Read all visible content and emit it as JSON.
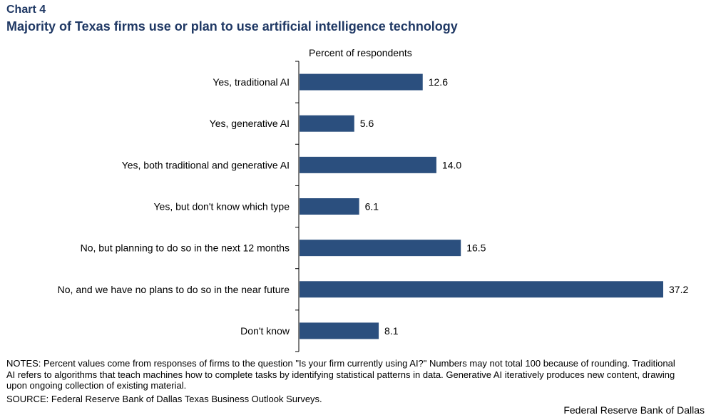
{
  "header": {
    "chart_number": "Chart 4",
    "title": "Majority of Texas firms use or plan to use artificial intelligence technology"
  },
  "colors": {
    "bar": "#2b4f7e",
    "title": "#1f3864"
  },
  "chart_data": {
    "type": "bar",
    "orientation": "horizontal",
    "unit_label": "Percent of respondents",
    "categories": [
      "Yes, traditional AI",
      "Yes, generative AI",
      "Yes, both traditional and generative AI",
      "Yes, but don't know which type",
      "No, but planning to do so in the next 12 months",
      "No, and we have no plans to do so in the near future",
      "Don't know"
    ],
    "values": [
      12.6,
      5.6,
      14.0,
      6.1,
      16.5,
      37.2,
      8.1
    ],
    "value_labels": [
      "12.6",
      "5.6",
      "14.0",
      "6.1",
      "16.5",
      "37.2",
      "8.1"
    ],
    "xlim": [
      0,
      40
    ],
    "grid": false,
    "legend": "none"
  },
  "footer": {
    "notes": "NOTES: Percent values come from responses of firms to the question \"Is your firm currently using AI?\" Numbers may not total 100 because of rounding. Traditional AI refers to algorithms that teach machines how to complete tasks by identifying statistical patterns in data. Generative AI iteratively produces new content, drawing upon ongoing collection of existing material.",
    "source": "SOURCE: Federal Reserve Bank of Dallas Texas Business Outlook Surveys.",
    "credit": "Federal Reserve Bank of Dallas"
  }
}
